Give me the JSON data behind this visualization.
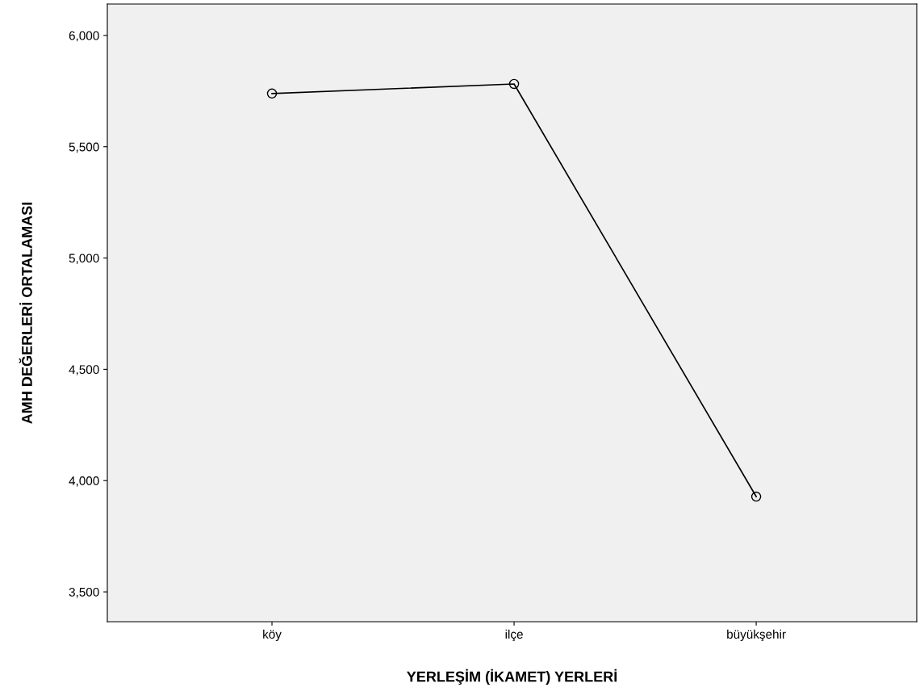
{
  "chart_data": {
    "type": "line",
    "xlabel": "YERLEŞİM (İKAMET) YERLERİ",
    "ylabel": "AMH DEĞERLERİ ORTALAMASI",
    "categories": [
      "köy",
      "ilçe",
      "büyükşehir"
    ],
    "series": [
      {
        "color": "#000000",
        "values": [
          5739,
          5782,
          3928
        ]
      }
    ],
    "ylim": [
      3366,
      6141
    ],
    "yticks": [
      {
        "value": 3500,
        "label": "3,500"
      },
      {
        "value": 4000,
        "label": "4,000"
      },
      {
        "value": 4500,
        "label": "4,500"
      },
      {
        "value": 5000,
        "label": "5,000"
      },
      {
        "value": 5500,
        "label": "5,500"
      },
      {
        "value": 6000,
        "label": "6,000"
      }
    ],
    "grid": false,
    "legend": false,
    "marker": "circle",
    "line_style": "solid"
  }
}
